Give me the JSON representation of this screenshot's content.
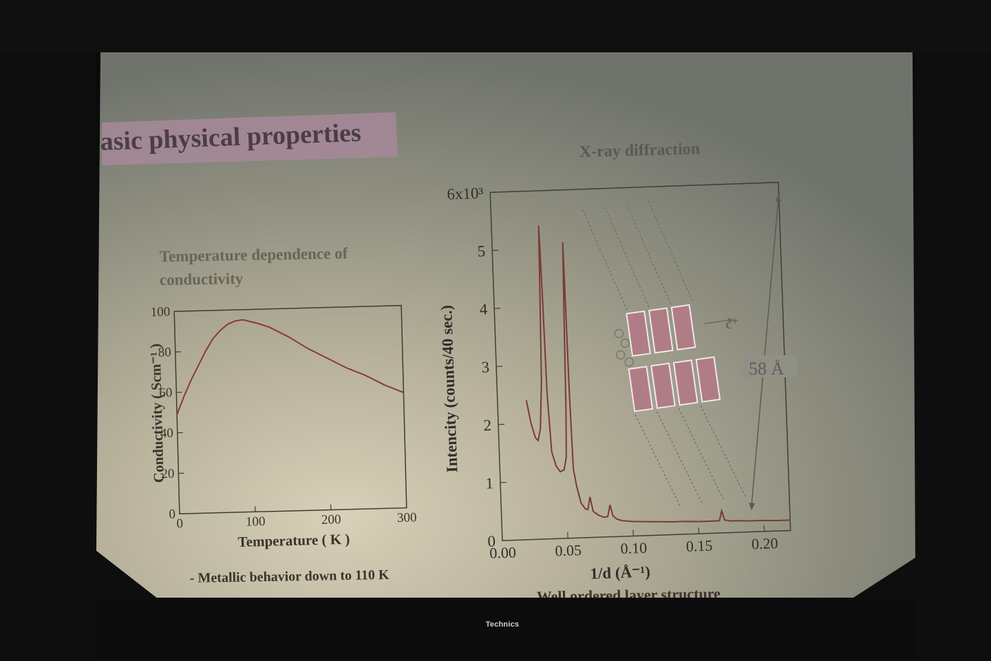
{
  "slide": {
    "title": "asic physical properties",
    "left_panel": {
      "title_line1": "Temperature dependence of",
      "title_line2": "conductivity",
      "note": "- Metallic behavior down to 110 K"
    },
    "right_panel": {
      "title": "X-ray diffraction",
      "scale_label": "58 Å",
      "inset_label": "c⁺",
      "bottom_text": "Well ordered layer structure"
    }
  },
  "brand": "Technics",
  "chart_data": [
    {
      "type": "line",
      "title": "Temperature dependence of conductivity",
      "xlabel": "Temperature ( K )",
      "ylabel": "Conductivity ( Scm⁻¹ )",
      "xlim": [
        0,
        300
      ],
      "ylim": [
        0,
        100
      ],
      "xticks": [
        "0",
        "100",
        "200",
        "300"
      ],
      "yticks": [
        "0",
        "20",
        "40",
        "60",
        "80",
        "100"
      ],
      "series": [
        {
          "x": [
            0,
            10,
            20,
            30,
            40,
            50,
            60,
            70,
            80,
            90,
            100,
            110,
            125,
            150,
            175,
            200,
            225,
            250,
            275,
            300
          ],
          "values": [
            49,
            58,
            66,
            73,
            80,
            86,
            90,
            93,
            94.5,
            95,
            94,
            93,
            91,
            86,
            80,
            75,
            70,
            66,
            61,
            57
          ]
        }
      ]
    },
    {
      "type": "line",
      "title": "X-ray diffraction",
      "xlabel": "1/d (Å⁻¹)",
      "ylabel": "Intencity (counts/40 sec.)",
      "xlim": [
        0,
        0.22
      ],
      "ylim": [
        0,
        6
      ],
      "xticks": [
        "0.00",
        "0.05",
        "0.10",
        "0.15",
        "0.20"
      ],
      "yticks": [
        "0",
        "1",
        "2",
        "3",
        "4",
        "5",
        "6x10³"
      ],
      "series": [
        {
          "x": [
            0.022,
            0.025,
            0.028,
            0.03,
            0.032,
            0.034,
            0.035,
            0.036,
            0.037,
            0.038,
            0.04,
            0.043,
            0.046,
            0.049,
            0.051,
            0.052,
            0.053,
            0.054,
            0.055,
            0.056,
            0.058,
            0.061,
            0.064,
            0.066,
            0.068,
            0.07,
            0.074,
            0.078,
            0.081,
            0.083,
            0.085,
            0.088,
            0.092,
            0.1,
            0.11,
            0.12,
            0.13,
            0.14,
            0.15,
            0.16,
            0.166,
            0.168,
            0.17,
            0.175,
            0.18,
            0.19,
            0.2,
            0.21,
            0.22
          ],
          "values": [
            2.4,
            2.0,
            1.75,
            1.7,
            1.9,
            2.7,
            4.0,
            5.4,
            4.2,
            2.5,
            1.5,
            1.25,
            1.15,
            1.18,
            1.4,
            2.2,
            3.8,
            5.1,
            2.5,
            1.2,
            0.9,
            0.6,
            0.5,
            0.48,
            0.7,
            0.45,
            0.38,
            0.34,
            0.35,
            0.55,
            0.36,
            0.3,
            0.27,
            0.25,
            0.24,
            0.23,
            0.22,
            0.22,
            0.21,
            0.21,
            0.21,
            0.38,
            0.22,
            0.2,
            0.2,
            0.19,
            0.19,
            0.18,
            0.18
          ]
        }
      ]
    }
  ]
}
